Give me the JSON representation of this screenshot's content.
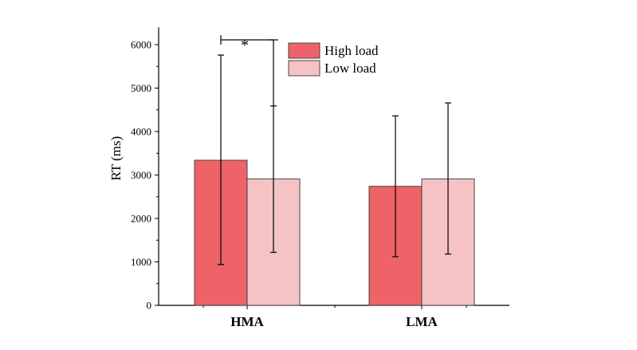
{
  "chart_data": {
    "type": "bar",
    "categories": [
      "HMA",
      "LMA"
    ],
    "series": [
      {
        "name": "High load",
        "color": "#ed6368",
        "values": [
          3340,
          2740
        ],
        "error_low": [
          940,
          1120
        ],
        "error_high": [
          5760,
          4360
        ]
      },
      {
        "name": "Low load",
        "color": "#f5c3c4",
        "values": [
          2910,
          2910
        ],
        "error_low": [
          1220,
          1180
        ],
        "error_high": [
          4590,
          4660
        ]
      }
    ],
    "ylabel": "RT (ms)",
    "xlabel": "",
    "ylim": [
      0,
      6400
    ],
    "yticks": [
      0,
      1000,
      2000,
      3000,
      4000,
      5000,
      6000
    ],
    "legend_position": "top-center",
    "grid": false,
    "significance": {
      "category": "HMA",
      "label": "*"
    }
  }
}
